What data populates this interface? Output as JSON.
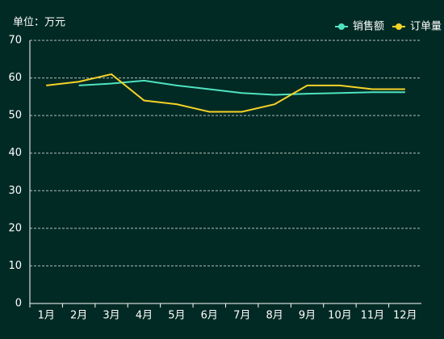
{
  "chart_data": {
    "type": "line",
    "unit_label": "单位：万元",
    "categories": [
      "1月",
      "2月",
      "3月",
      "4月",
      "5月",
      "6月",
      "7月",
      "8月",
      "9月",
      "10月",
      "11月",
      "12月"
    ],
    "series": [
      {
        "name": "销售额",
        "color": "#4fe3c1",
        "values": [
          null,
          58,
          58.5,
          59.3,
          58,
          57,
          56,
          55.5,
          55.8,
          56,
          56.2,
          56.2
        ]
      },
      {
        "name": "订单量",
        "color": "#f5d327",
        "values": [
          58,
          59,
          61,
          54,
          53,
          51,
          51,
          53,
          58,
          58,
          57,
          57
        ]
      }
    ],
    "ylim": [
      0,
      70
    ],
    "yticks": [
      0,
      10,
      20,
      30,
      40,
      50,
      60,
      70
    ],
    "grid": true,
    "legend": "top-right"
  }
}
